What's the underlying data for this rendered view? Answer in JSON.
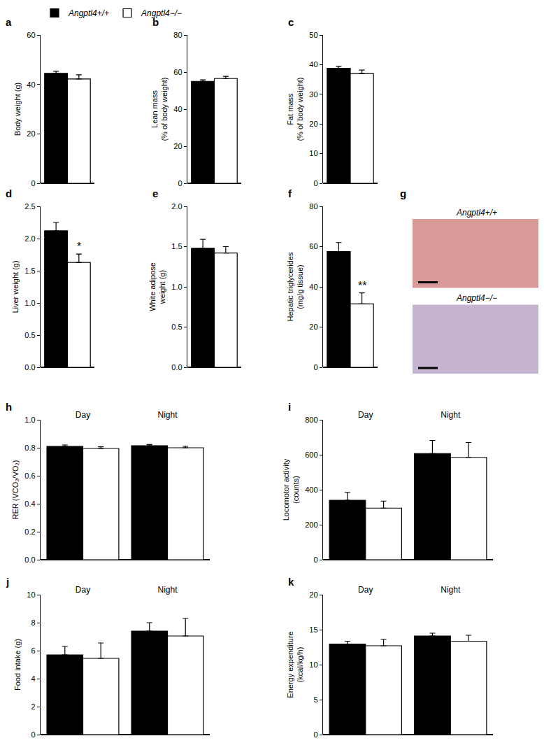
{
  "chart_data": [
    {
      "type": "bar",
      "panel": "a",
      "y_label": "Body weight (g)",
      "categories": [
        null
      ],
      "series": [
        {
          "name": "Angptl4+/+",
          "color": "#000000",
          "values": [
            44.5
          ],
          "error": [
            0.8
          ]
        },
        {
          "name": "Angptl4−/−",
          "color": "#ffffff",
          "values": [
            42.2
          ],
          "error": [
            1.7
          ]
        }
      ],
      "ylim": [
        0,
        60
      ],
      "yticks": [
        0,
        20,
        40,
        60
      ]
    },
    {
      "type": "bar",
      "panel": "b",
      "y_label": "Lean mass\n(% of body weight)",
      "categories": [
        null
      ],
      "series": [
        {
          "name": "Angptl4+/+",
          "color": "#000000",
          "values": [
            55
          ],
          "error": [
            0.8
          ]
        },
        {
          "name": "Angptl4−/−",
          "color": "#ffffff",
          "values": [
            56.5
          ],
          "error": [
            1.2
          ]
        }
      ],
      "ylim": [
        0,
        80
      ],
      "yticks": [
        0,
        20,
        40,
        60,
        80
      ]
    },
    {
      "type": "bar",
      "panel": "c",
      "y_label": "Fat mass\n(% of body weight)",
      "categories": [
        null
      ],
      "series": [
        {
          "name": "Angptl4+/+",
          "color": "#000000",
          "values": [
            38.8
          ],
          "error": [
            0.6
          ]
        },
        {
          "name": "Angptl4−/−",
          "color": "#ffffff",
          "values": [
            37
          ],
          "error": [
            1.2
          ]
        }
      ],
      "ylim": [
        0,
        50
      ],
      "yticks": [
        0,
        10,
        20,
        30,
        40,
        50
      ]
    },
    {
      "type": "bar",
      "panel": "d",
      "y_label": "Liver weight (g)",
      "categories": [
        null
      ],
      "series": [
        {
          "name": "Angptl4+/+",
          "color": "#000000",
          "values": [
            2.12
          ],
          "error": [
            0.13
          ]
        },
        {
          "name": "Angptl4−/−",
          "color": "#ffffff",
          "values": [
            1.63
          ],
          "error": [
            0.13
          ]
        }
      ],
      "ylim": [
        0,
        2.5
      ],
      "yticks": [
        {
          "value": 0,
          "label": "0.0"
        },
        0.5,
        {
          "value": 1,
          "label": "1.0"
        },
        1.5,
        {
          "value": 2,
          "label": "2.0"
        },
        2.5
      ],
      "annotations": [
        {
          "text": "*",
          "series": "Angptl4−/−"
        }
      ]
    },
    {
      "type": "bar",
      "panel": "e",
      "y_label": "White adipose\nweight (g)",
      "categories": [
        null
      ],
      "series": [
        {
          "name": "Angptl4+/+",
          "color": "#000000",
          "values": [
            1.48
          ],
          "error": [
            0.11
          ]
        },
        {
          "name": "Angptl4−/−",
          "color": "#ffffff",
          "values": [
            1.42
          ],
          "error": [
            0.08
          ]
        }
      ],
      "ylim": [
        0,
        2
      ],
      "yticks": [
        {
          "value": 0,
          "label": "0.0"
        },
        0.5,
        {
          "value": 1,
          "label": "1.0"
        },
        1.5,
        {
          "value": 2,
          "label": "2.0"
        }
      ]
    },
    {
      "type": "bar",
      "panel": "f",
      "y_label": "Hepatic triglycerides\n(mg/g tissue)",
      "categories": [
        null
      ],
      "series": [
        {
          "name": "Angptl4+/+",
          "color": "#000000",
          "values": [
            57.5
          ],
          "error": [
            4.5
          ]
        },
        {
          "name": "Angptl4−/−",
          "color": "#ffffff",
          "values": [
            31.5
          ],
          "error": [
            5.5
          ]
        }
      ],
      "ylim": [
        0,
        80
      ],
      "yticks": [
        0,
        20,
        40,
        60,
        80
      ],
      "annotations": [
        {
          "text": "**",
          "series": "Angptl4−/−"
        }
      ]
    },
    {
      "type": "image",
      "panel": "g",
      "labels": [
        "Angptl4+/+",
        "Angptl4−/−"
      ]
    },
    {
      "type": "bar",
      "panel": "h",
      "y_label": "RER (VCO₂/VO₂)",
      "categories": [
        "Day",
        "Night"
      ],
      "series": [
        {
          "name": "Angptl4+/+",
          "color": "#000000",
          "values": [
            0.81,
            0.815
          ],
          "error": [
            0.01,
            0.008
          ]
        },
        {
          "name": "Angptl4−/−",
          "color": "#ffffff",
          "values": [
            0.795,
            0.8
          ],
          "error": [
            0.012,
            0.01
          ]
        }
      ],
      "ylim": [
        0,
        1
      ],
      "yticks": [
        {
          "value": 0,
          "label": "0.0"
        },
        0.2,
        0.4,
        0.6,
        0.8,
        {
          "value": 1,
          "label": "1.0"
        }
      ]
    },
    {
      "type": "bar",
      "panel": "i",
      "y_label": "Locomotor activity\n(counts)",
      "categories": [
        "Day",
        "Night"
      ],
      "series": [
        {
          "name": "Angptl4+/+",
          "color": "#000000",
          "values": [
            340,
            607
          ],
          "error": [
            45,
            75
          ]
        },
        {
          "name": "Angptl4−/−",
          "color": "#ffffff",
          "values": [
            295,
            585
          ],
          "error": [
            40,
            85
          ]
        }
      ],
      "ylim": [
        0,
        800
      ],
      "yticks": [
        0,
        200,
        400,
        600,
        800
      ]
    },
    {
      "type": "bar",
      "panel": "j",
      "y_label": "Food intake (g)",
      "categories": [
        "Day",
        "Night"
      ],
      "series": [
        {
          "name": "Angptl4+/+",
          "color": "#000000",
          "values": [
            5.7,
            7.4
          ],
          "error": [
            0.6,
            0.6
          ]
        },
        {
          "name": "Angptl4−/−",
          "color": "#ffffff",
          "values": [
            5.45,
            7.05
          ],
          "error": [
            1.1,
            1.25
          ]
        }
      ],
      "ylim": [
        0,
        10
      ],
      "yticks": [
        0,
        2,
        4,
        6,
        8,
        10
      ]
    },
    {
      "type": "bar",
      "panel": "k",
      "y_label": "Energy expenditure\n(kcal/kg/h)",
      "categories": [
        "Day",
        "Night"
      ],
      "series": [
        {
          "name": "Angptl4+/+",
          "color": "#000000",
          "values": [
            12.95,
            14.1
          ],
          "error": [
            0.4,
            0.4
          ]
        },
        {
          "name": "Angptl4−/−",
          "color": "#ffffff",
          "values": [
            12.7,
            13.35
          ],
          "error": [
            0.9,
            0.85
          ]
        }
      ],
      "ylim": [
        0,
        20
      ],
      "yticks": [
        0,
        5,
        10,
        15,
        20
      ]
    }
  ]
}
